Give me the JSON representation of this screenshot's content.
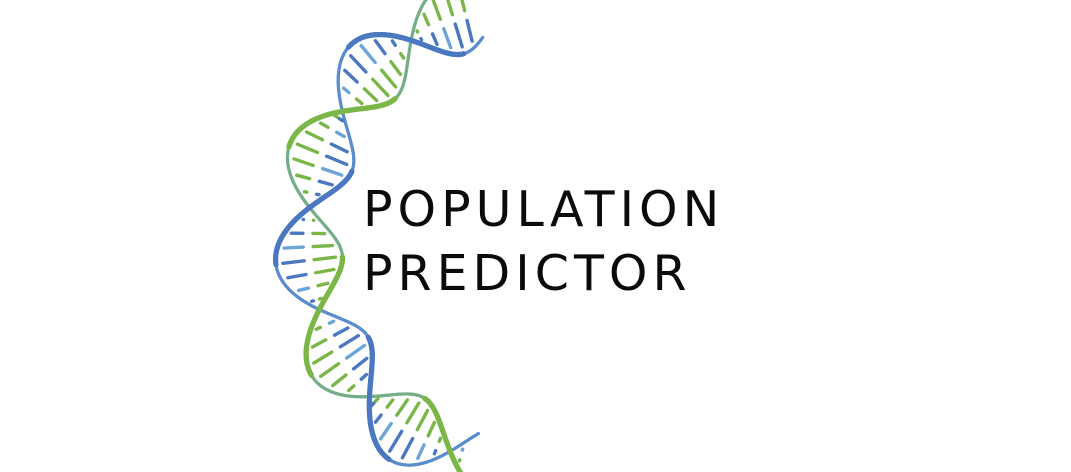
{
  "logo": {
    "line1": "POPULATION",
    "line2": "PREDICTOR",
    "text_color": "#0b0b0b",
    "helix_colors": {
      "green": "#7ab648",
      "blue": "#4b78c0",
      "light_blue": "#6ea5d8"
    }
  }
}
